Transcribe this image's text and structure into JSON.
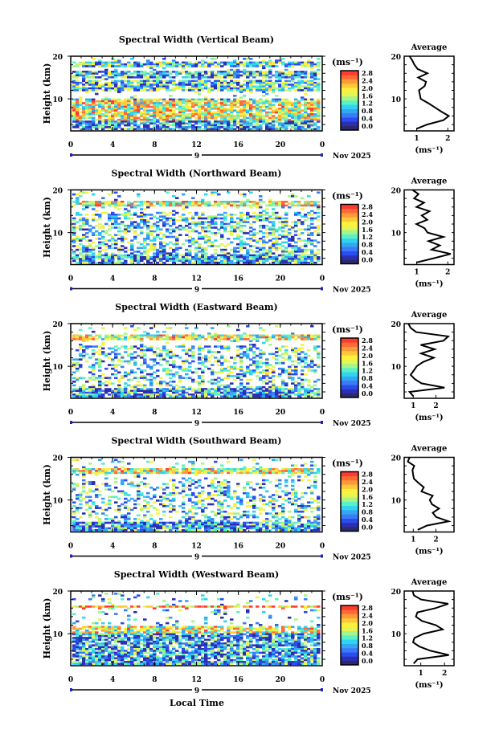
{
  "chart_data": {
    "type": "heatmap",
    "xlabel": "Local Time",
    "x_ticks": [
      "0",
      "4",
      "8",
      "12",
      "16",
      "20",
      "0"
    ],
    "xlim": [
      0,
      24
    ],
    "ylabel": "Height (km)",
    "y_ticks": [
      "20",
      "10"
    ],
    "ylim": [
      2.5,
      20
    ],
    "date_marker": "9",
    "date_label": "Nov 2025",
    "colorbar": {
      "unit": "(ms⁻¹)",
      "ticks": [
        "2.8",
        "2.4",
        "2.0",
        "1.6",
        "1.2",
        "0.8",
        "0.4",
        "0.0"
      ],
      "range": [
        0,
        3.0
      ]
    },
    "average": {
      "title": "Average",
      "xlabel": "(ms⁻¹)",
      "y_ticks": [
        "20",
        "10"
      ]
    },
    "colors": [
      "#2a2a6e",
      "#2b2fb0",
      "#2b4cf0",
      "#3a7cf5",
      "#35a6f2",
      "#2fd4f0",
      "#5cf0c8",
      "#a6f586",
      "#e6f556",
      "#fff03a",
      "#ffc83a",
      "#ff9a38",
      "#ff6a35",
      "#ff3a30"
    ],
    "panels": [
      {
        "title": "Spectral Width (Vertical Beam)",
        "avg_ticks": [
          "1",
          "2"
        ],
        "avg_xlim": [
          0.6,
          2.2
        ],
        "avg_profile": [
          [
            3,
            1.0
          ],
          [
            4,
            1.3
          ],
          [
            5,
            1.9
          ],
          [
            6,
            2.1
          ],
          [
            7,
            1.8
          ],
          [
            8,
            1.6
          ],
          [
            9,
            1.4
          ],
          [
            10,
            1.2
          ],
          [
            11,
            1.1
          ],
          [
            12,
            1.0
          ],
          [
            13,
            1.2
          ],
          [
            14,
            1.3
          ],
          [
            15,
            1.1
          ],
          [
            16,
            1.4
          ],
          [
            17,
            1.1
          ],
          [
            18,
            0.9
          ],
          [
            19,
            0.8
          ],
          [
            20,
            0.8
          ]
        ]
      },
      {
        "title": "Spectral Width (Northward Beam)",
        "avg_ticks": [
          "1",
          "2"
        ],
        "avg_xlim": [
          0.6,
          2.2
        ],
        "avg_profile": [
          [
            3,
            1.0
          ],
          [
            4,
            1.5
          ],
          [
            5,
            2.1
          ],
          [
            6,
            1.5
          ],
          [
            7,
            1.8
          ],
          [
            8,
            1.4
          ],
          [
            9,
            1.9
          ],
          [
            10,
            1.3
          ],
          [
            11,
            1.2
          ],
          [
            12,
            1.0
          ],
          [
            13,
            1.3
          ],
          [
            14,
            1.1
          ],
          [
            15,
            1.4
          ],
          [
            16,
            1.0
          ],
          [
            17,
            1.2
          ],
          [
            18,
            0.9
          ],
          [
            19,
            1.0
          ],
          [
            20,
            0.9
          ]
        ]
      },
      {
        "title": "Spectral Width (Eastward Beam)",
        "avg_ticks": [
          "1",
          "2"
        ],
        "avg_xlim": [
          0.6,
          2.8
        ],
        "avg_profile": [
          [
            3,
            1.0
          ],
          [
            4,
            0.9
          ],
          [
            5,
            2.4
          ],
          [
            6,
            1.3
          ],
          [
            7,
            1.0
          ],
          [
            8,
            0.9
          ],
          [
            9,
            1.0
          ],
          [
            10,
            1.1
          ],
          [
            11,
            1.5
          ],
          [
            12,
            1.9
          ],
          [
            13,
            1.4
          ],
          [
            14,
            2.0
          ],
          [
            15,
            1.3
          ],
          [
            16,
            2.4
          ],
          [
            17,
            2.6
          ],
          [
            18,
            1.2
          ],
          [
            19,
            0.9
          ],
          [
            20,
            0.8
          ]
        ]
      },
      {
        "title": "Spectral Width (Southward Beam)",
        "avg_ticks": [
          "1",
          "2"
        ],
        "avg_xlim": [
          0.6,
          2.8
        ],
        "avg_profile": [
          [
            3,
            1.2
          ],
          [
            4,
            1.6
          ],
          [
            5,
            2.5
          ],
          [
            6,
            2.0
          ],
          [
            7,
            1.9
          ],
          [
            8,
            2.2
          ],
          [
            9,
            1.8
          ],
          [
            10,
            1.7
          ],
          [
            11,
            1.9
          ],
          [
            12,
            1.4
          ],
          [
            13,
            1.5
          ],
          [
            14,
            1.2
          ],
          [
            15,
            1.1
          ],
          [
            16,
            1.0
          ],
          [
            17,
            0.9
          ],
          [
            18,
            1.0
          ],
          [
            19,
            0.8
          ],
          [
            20,
            0.8
          ]
        ]
      },
      {
        "title": "Spectral Width (Westward Beam)",
        "avg_ticks": [
          "1",
          "2"
        ],
        "avg_xlim": [
          0.3,
          2.4
        ],
        "avg_profile": [
          [
            3,
            0.7
          ],
          [
            4,
            0.8
          ],
          [
            5,
            2.2
          ],
          [
            6,
            1.4
          ],
          [
            7,
            0.9
          ],
          [
            8,
            0.6
          ],
          [
            9,
            0.8
          ],
          [
            10,
            1.1
          ],
          [
            11,
            1.9
          ],
          [
            12,
            1.6
          ],
          [
            13,
            1.1
          ],
          [
            14,
            0.8
          ],
          [
            15,
            0.9
          ],
          [
            16,
            1.6
          ],
          [
            17,
            2.2
          ],
          [
            18,
            1.0
          ],
          [
            19,
            0.7
          ],
          [
            20,
            0.6
          ]
        ]
      }
    ]
  }
}
